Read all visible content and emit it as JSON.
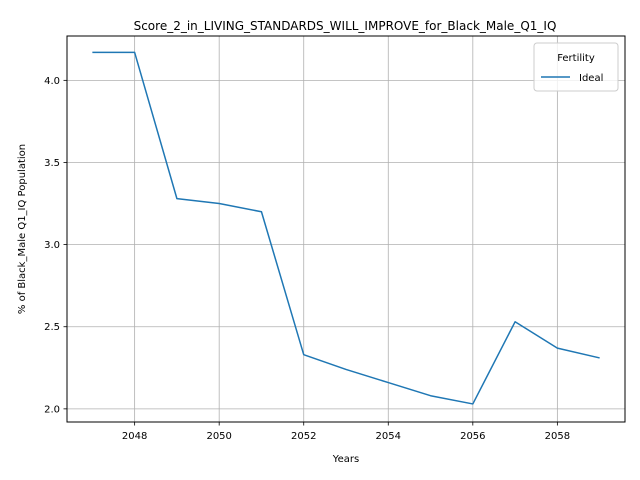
{
  "chart_data": {
    "type": "line",
    "title": "Score_2_in_LIVING_STANDARDS_WILL_IMPROVE_for_Black_Male_Q1_IQ",
    "xlabel": "Years",
    "ylabel": "% of Black_Male Q1_IQ Population",
    "xlim": [
      2046.4,
      2059.6
    ],
    "ylim": [
      1.92,
      4.27
    ],
    "xticks": [
      2048,
      2050,
      2052,
      2054,
      2056,
      2058
    ],
    "yticks": [
      2.0,
      2.5,
      3.0,
      3.5,
      4.0
    ],
    "xtick_labels": [
      "2048",
      "2050",
      "2052",
      "2054",
      "2056",
      "2058"
    ],
    "ytick_labels": [
      "2.0",
      "2.5",
      "3.0",
      "3.5",
      "4.0"
    ],
    "grid": true,
    "legend": {
      "title": "Fertility",
      "placement": "top-right",
      "entries": [
        "Ideal"
      ]
    },
    "series": [
      {
        "name": "Ideal",
        "color": "#1f77b4",
        "x": [
          2047,
          2048,
          2049,
          2050,
          2051,
          2052,
          2053,
          2054,
          2055,
          2056,
          2057,
          2058,
          2059
        ],
        "y": [
          4.17,
          4.17,
          3.28,
          3.25,
          3.2,
          2.33,
          2.24,
          2.16,
          2.08,
          2.03,
          2.53,
          2.37,
          2.31
        ]
      }
    ]
  }
}
